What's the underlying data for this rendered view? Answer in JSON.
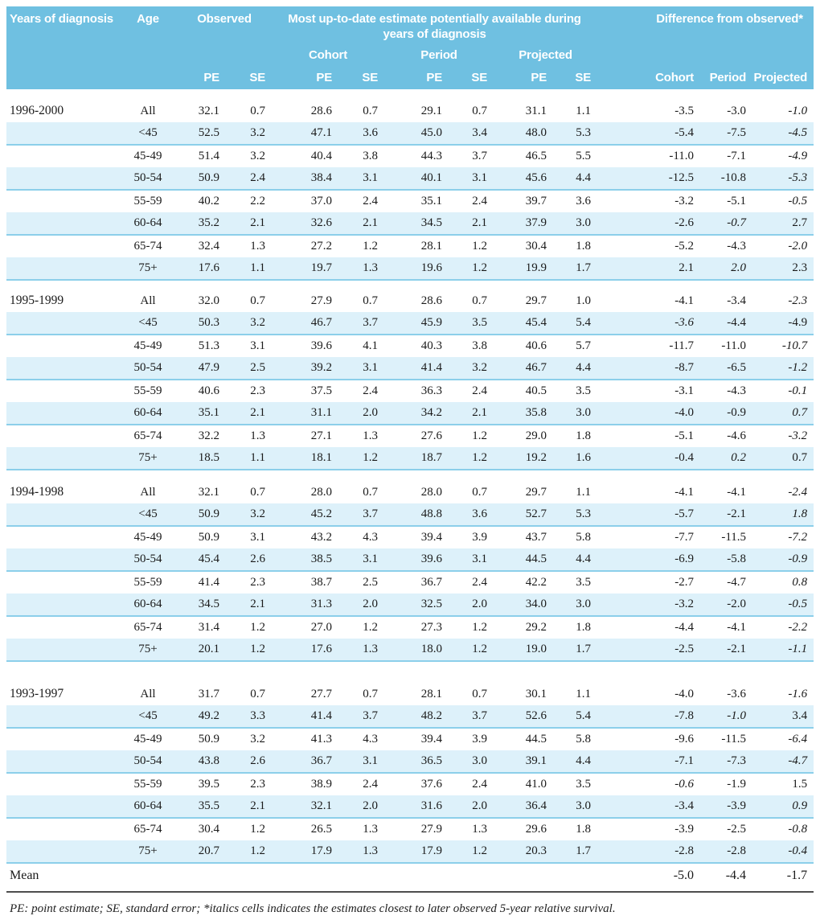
{
  "colors": {
    "header_bg": "#6fc0e1",
    "stripe_bg": "#ddf1fa",
    "stripe_line": "#8ccfea",
    "rule": "#4d4d4d"
  },
  "table": {
    "header": {
      "col_years": "Years of diagnosis",
      "col_age": "Age",
      "col_observed": "Observed",
      "col_estimate": "Most up-to-date estimate potentially available during years of diagnosis",
      "col_difference": "Difference from observed*",
      "sub_cohort": "Cohort",
      "sub_period": "Period",
      "sub_projected": "Projected",
      "pe": "PE",
      "se": "SE",
      "diff_cohort": "Cohort",
      "diff_period": "Period",
      "diff_projected": "Projected"
    },
    "groups": [
      {
        "years": "1996-2000",
        "rows": [
          {
            "age": "All",
            "observed": [
              "32.1",
              "0.7"
            ],
            "cohort": [
              "28.6",
              "0.7"
            ],
            "period": [
              "29.1",
              "0.7"
            ],
            "projected": [
              "31.1",
              "1.1"
            ],
            "diff": [
              "-3.5",
              "-3.0",
              "-1.0"
            ],
            "italic": [
              2
            ]
          },
          {
            "age": "<45",
            "observed": [
              "52.5",
              "3.2"
            ],
            "cohort": [
              "47.1",
              "3.6"
            ],
            "period": [
              "45.0",
              "3.4"
            ],
            "projected": [
              "48.0",
              "5.3"
            ],
            "diff": [
              "-5.4",
              "-7.5",
              "-4.5"
            ],
            "italic": [
              2
            ]
          },
          {
            "age": "45-49",
            "observed": [
              "51.4",
              "3.2"
            ],
            "cohort": [
              "40.4",
              "3.8"
            ],
            "period": [
              "44.3",
              "3.7"
            ],
            "projected": [
              "46.5",
              "5.5"
            ],
            "diff": [
              "-11.0",
              "-7.1",
              "-4.9"
            ],
            "italic": [
              2
            ]
          },
          {
            "age": "50-54",
            "observed": [
              "50.9",
              "2.4"
            ],
            "cohort": [
              "38.4",
              "3.1"
            ],
            "period": [
              "40.1",
              "3.1"
            ],
            "projected": [
              "45.6",
              "4.4"
            ],
            "diff": [
              "-12.5",
              "-10.8",
              "-5.3"
            ],
            "italic": [
              2
            ]
          },
          {
            "age": "55-59",
            "observed": [
              "40.2",
              "2.2"
            ],
            "cohort": [
              "37.0",
              "2.4"
            ],
            "period": [
              "35.1",
              "2.4"
            ],
            "projected": [
              "39.7",
              "3.6"
            ],
            "diff": [
              "-3.2",
              "-5.1",
              "-0.5"
            ],
            "italic": [
              2
            ]
          },
          {
            "age": "60-64",
            "observed": [
              "35.2",
              "2.1"
            ],
            "cohort": [
              "32.6",
              "2.1"
            ],
            "period": [
              "34.5",
              "2.1"
            ],
            "projected": [
              "37.9",
              "3.0"
            ],
            "diff": [
              "-2.6",
              "-0.7",
              "2.7"
            ],
            "italic": [
              1
            ]
          },
          {
            "age": "65-74",
            "observed": [
              "32.4",
              "1.3"
            ],
            "cohort": [
              "27.2",
              "1.2"
            ],
            "period": [
              "28.1",
              "1.2"
            ],
            "projected": [
              "30.4",
              "1.8"
            ],
            "diff": [
              "-5.2",
              "-4.3",
              "-2.0"
            ],
            "italic": [
              2
            ]
          },
          {
            "age": "75+",
            "observed": [
              "17.6",
              "1.1"
            ],
            "cohort": [
              "19.7",
              "1.3"
            ],
            "period": [
              "19.6",
              "1.2"
            ],
            "projected": [
              "19.9",
              "1.7"
            ],
            "diff": [
              "2.1",
              "2.0",
              "2.3"
            ],
            "italic": [
              1
            ]
          }
        ]
      },
      {
        "years": "1995-1999",
        "rows": [
          {
            "age": "All",
            "observed": [
              "32.0",
              "0.7"
            ],
            "cohort": [
              "27.9",
              "0.7"
            ],
            "period": [
              "28.6",
              "0.7"
            ],
            "projected": [
              "29.7",
              "1.0"
            ],
            "diff": [
              "-4.1",
              "-3.4",
              "-2.3"
            ],
            "italic": [
              2
            ]
          },
          {
            "age": "<45",
            "observed": [
              "50.3",
              "3.2"
            ],
            "cohort": [
              "46.7",
              "3.7"
            ],
            "period": [
              "45.9",
              "3.5"
            ],
            "projected": [
              "45.4",
              "5.4"
            ],
            "diff": [
              "-3.6",
              "-4.4",
              "-4.9"
            ],
            "italic": [
              0
            ]
          },
          {
            "age": "45-49",
            "observed": [
              "51.3",
              "3.1"
            ],
            "cohort": [
              "39.6",
              "4.1"
            ],
            "period": [
              "40.3",
              "3.8"
            ],
            "projected": [
              "40.6",
              "5.7"
            ],
            "diff": [
              "-11.7",
              "-11.0",
              "-10.7"
            ],
            "italic": [
              2
            ]
          },
          {
            "age": "50-54",
            "observed": [
              "47.9",
              "2.5"
            ],
            "cohort": [
              "39.2",
              "3.1"
            ],
            "period": [
              "41.4",
              "3.2"
            ],
            "projected": [
              "46.7",
              "4.4"
            ],
            "diff": [
              "-8.7",
              "-6.5",
              "-1.2"
            ],
            "italic": [
              2
            ]
          },
          {
            "age": "55-59",
            "observed": [
              "40.6",
              "2.3"
            ],
            "cohort": [
              "37.5",
              "2.4"
            ],
            "period": [
              "36.3",
              "2.4"
            ],
            "projected": [
              "40.5",
              "3.5"
            ],
            "diff": [
              "-3.1",
              "-4.3",
              "-0.1"
            ],
            "italic": [
              2
            ]
          },
          {
            "age": "60-64",
            "observed": [
              "35.1",
              "2.1"
            ],
            "cohort": [
              "31.1",
              "2.0"
            ],
            "period": [
              "34.2",
              "2.1"
            ],
            "projected": [
              "35.8",
              "3.0"
            ],
            "diff": [
              "-4.0",
              "-0.9",
              "0.7"
            ],
            "italic": [
              2
            ]
          },
          {
            "age": "65-74",
            "observed": [
              "32.2",
              "1.3"
            ],
            "cohort": [
              "27.1",
              "1.3"
            ],
            "period": [
              "27.6",
              "1.2"
            ],
            "projected": [
              "29.0",
              "1.8"
            ],
            "diff": [
              "-5.1",
              "-4.6",
              "-3.2"
            ],
            "italic": [
              2
            ]
          },
          {
            "age": "75+",
            "observed": [
              "18.5",
              "1.1"
            ],
            "cohort": [
              "18.1",
              "1.2"
            ],
            "period": [
              "18.7",
              "1.2"
            ],
            "projected": [
              "19.2",
              "1.6"
            ],
            "diff": [
              "-0.4",
              "0.2",
              "0.7"
            ],
            "italic": [
              1
            ]
          }
        ]
      },
      {
        "years": "1994-1998",
        "rows": [
          {
            "age": "All",
            "observed": [
              "32.1",
              "0.7"
            ],
            "cohort": [
              "28.0",
              "0.7"
            ],
            "period": [
              "28.0",
              "0.7"
            ],
            "projected": [
              "29.7",
              "1.1"
            ],
            "diff": [
              "-4.1",
              "-4.1",
              "-2.4"
            ],
            "italic": [
              2
            ]
          },
          {
            "age": "<45",
            "observed": [
              "50.9",
              "3.2"
            ],
            "cohort": [
              "45.2",
              "3.7"
            ],
            "period": [
              "48.8",
              "3.6"
            ],
            "projected": [
              "52.7",
              "5.3"
            ],
            "diff": [
              "-5.7",
              "-2.1",
              "1.8"
            ],
            "italic": [
              2
            ]
          },
          {
            "age": "45-49",
            "observed": [
              "50.9",
              "3.1"
            ],
            "cohort": [
              "43.2",
              "4.3"
            ],
            "period": [
              "39.4",
              "3.9"
            ],
            "projected": [
              "43.7",
              "5.8"
            ],
            "diff": [
              "-7.7",
              "-11.5",
              "-7.2"
            ],
            "italic": [
              2
            ]
          },
          {
            "age": "50-54",
            "observed": [
              "45.4",
              "2.6"
            ],
            "cohort": [
              "38.5",
              "3.1"
            ],
            "period": [
              "39.6",
              "3.1"
            ],
            "projected": [
              "44.5",
              "4.4"
            ],
            "diff": [
              "-6.9",
              "-5.8",
              "-0.9"
            ],
            "italic": [
              2
            ]
          },
          {
            "age": "55-59",
            "observed": [
              "41.4",
              "2.3"
            ],
            "cohort": [
              "38.7",
              "2.5"
            ],
            "period": [
              "36.7",
              "2.4"
            ],
            "projected": [
              "42.2",
              "3.5"
            ],
            "diff": [
              "-2.7",
              "-4.7",
              "0.8"
            ],
            "italic": [
              2
            ]
          },
          {
            "age": "60-64",
            "observed": [
              "34.5",
              "2.1"
            ],
            "cohort": [
              "31.3",
              "2.0"
            ],
            "period": [
              "32.5",
              "2.0"
            ],
            "projected": [
              "34.0",
              "3.0"
            ],
            "diff": [
              "-3.2",
              "-2.0",
              "-0.5"
            ],
            "italic": [
              2
            ]
          },
          {
            "age": "65-74",
            "observed": [
              "31.4",
              "1.2"
            ],
            "cohort": [
              "27.0",
              "1.2"
            ],
            "period": [
              "27.3",
              "1.2"
            ],
            "projected": [
              "29.2",
              "1.8"
            ],
            "diff": [
              "-4.4",
              "-4.1",
              "-2.2"
            ],
            "italic": [
              2
            ]
          },
          {
            "age": "75+",
            "observed": [
              "20.1",
              "1.2"
            ],
            "cohort": [
              "17.6",
              "1.3"
            ],
            "period": [
              "18.0",
              "1.2"
            ],
            "projected": [
              "19.0",
              "1.7"
            ],
            "diff": [
              "-2.5",
              "-2.1",
              "-1.1"
            ],
            "italic": [
              2
            ]
          }
        ]
      },
      {
        "years": "1993-1997",
        "rows": [
          {
            "age": "All",
            "observed": [
              "31.7",
              "0.7"
            ],
            "cohort": [
              "27.7",
              "0.7"
            ],
            "period": [
              "28.1",
              "0.7"
            ],
            "projected": [
              "30.1",
              "1.1"
            ],
            "diff": [
              "-4.0",
              "-3.6",
              "-1.6"
            ],
            "italic": [
              2
            ]
          },
          {
            "age": "<45",
            "observed": [
              "49.2",
              "3.3"
            ],
            "cohort": [
              "41.4",
              "3.7"
            ],
            "period": [
              "48.2",
              "3.7"
            ],
            "projected": [
              "52.6",
              "5.4"
            ],
            "diff": [
              "-7.8",
              "-1.0",
              "3.4"
            ],
            "italic": [
              1
            ]
          },
          {
            "age": "45-49",
            "observed": [
              "50.9",
              "3.2"
            ],
            "cohort": [
              "41.3",
              "4.3"
            ],
            "period": [
              "39.4",
              "3.9"
            ],
            "projected": [
              "44.5",
              "5.8"
            ],
            "diff": [
              "-9.6",
              "-11.5",
              "-6.4"
            ],
            "italic": [
              2
            ]
          },
          {
            "age": "50-54",
            "observed": [
              "43.8",
              "2.6"
            ],
            "cohort": [
              "36.7",
              "3.1"
            ],
            "period": [
              "36.5",
              "3.0"
            ],
            "projected": [
              "39.1",
              "4.4"
            ],
            "diff": [
              "-7.1",
              "-7.3",
              "-4.7"
            ],
            "italic": [
              2
            ]
          },
          {
            "age": "55-59",
            "observed": [
              "39.5",
              "2.3"
            ],
            "cohort": [
              "38.9",
              "2.4"
            ],
            "period": [
              "37.6",
              "2.4"
            ],
            "projected": [
              "41.0",
              "3.5"
            ],
            "diff": [
              "-0.6",
              "-1.9",
              "1.5"
            ],
            "italic": [
              0
            ]
          },
          {
            "age": "60-64",
            "observed": [
              "35.5",
              "2.1"
            ],
            "cohort": [
              "32.1",
              "2.0"
            ],
            "period": [
              "31.6",
              "2.0"
            ],
            "projected": [
              "36.4",
              "3.0"
            ],
            "diff": [
              "-3.4",
              "-3.9",
              "0.9"
            ],
            "italic": [
              2
            ]
          },
          {
            "age": "65-74",
            "observed": [
              "30.4",
              "1.2"
            ],
            "cohort": [
              "26.5",
              "1.3"
            ],
            "period": [
              "27.9",
              "1.3"
            ],
            "projected": [
              "29.6",
              "1.8"
            ],
            "diff": [
              "-3.9",
              "-2.5",
              "-0.8"
            ],
            "italic": [
              2
            ]
          },
          {
            "age": "75+",
            "observed": [
              "20.7",
              "1.2"
            ],
            "cohort": [
              "17.9",
              "1.3"
            ],
            "period": [
              "17.9",
              "1.2"
            ],
            "projected": [
              "20.3",
              "1.7"
            ],
            "diff": [
              "-2.8",
              "-2.8",
              "-0.4"
            ],
            "italic": [
              2
            ]
          }
        ]
      }
    ],
    "mean": {
      "label": "Mean",
      "diff": [
        "-5.0",
        "-4.4",
        "-1.7"
      ]
    },
    "footnote": "PE: point estimate; SE, standard error; *italics cells indicates the estimates closest to later observed 5-year relative survival."
  }
}
